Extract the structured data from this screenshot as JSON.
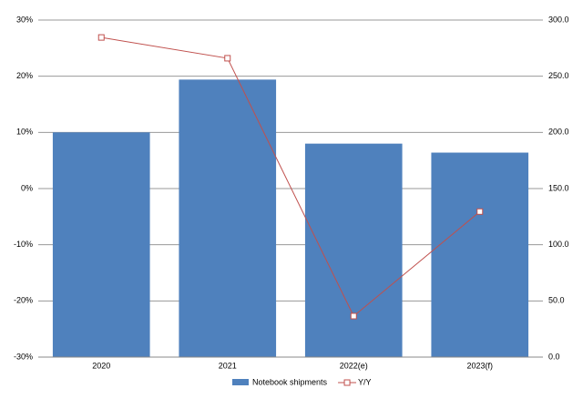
{
  "chart_data": {
    "type": "bar",
    "categories": [
      "2020",
      "2021",
      "2022(e)",
      "2023(f)"
    ],
    "series": [
      {
        "name": "Notebook shipments",
        "type": "bar",
        "axis": "y2",
        "color": "#4f81bd",
        "values": [
          200,
          247,
          190,
          182
        ]
      },
      {
        "name": "Y/Y",
        "type": "line",
        "axis": "y",
        "color": "#c0504d",
        "values": [
          26.9,
          23.2,
          -22.7,
          -4.1
        ]
      }
    ],
    "ylim": [
      -30,
      30
    ],
    "yticks": [
      {
        "value": -30,
        "label": "-30%"
      },
      {
        "value": -20,
        "label": "-20%"
      },
      {
        "value": -10,
        "label": "-10%"
      },
      {
        "value": 0,
        "label": "0%"
      },
      {
        "value": 10,
        "label": "10%"
      },
      {
        "value": 20,
        "label": "20%"
      },
      {
        "value": 30,
        "label": "30%"
      }
    ],
    "y2lim": [
      0,
      300
    ],
    "y2ticks": [
      {
        "value": 0,
        "label": "0.0"
      },
      {
        "value": 50,
        "label": "50.0"
      },
      {
        "value": 100,
        "label": "100.0"
      },
      {
        "value": 150,
        "label": "150.0"
      },
      {
        "value": 200,
        "label": "200.0"
      },
      {
        "value": 250,
        "label": "250.0"
      },
      {
        "value": 300,
        "label": "300.0"
      }
    ],
    "grid": true
  }
}
